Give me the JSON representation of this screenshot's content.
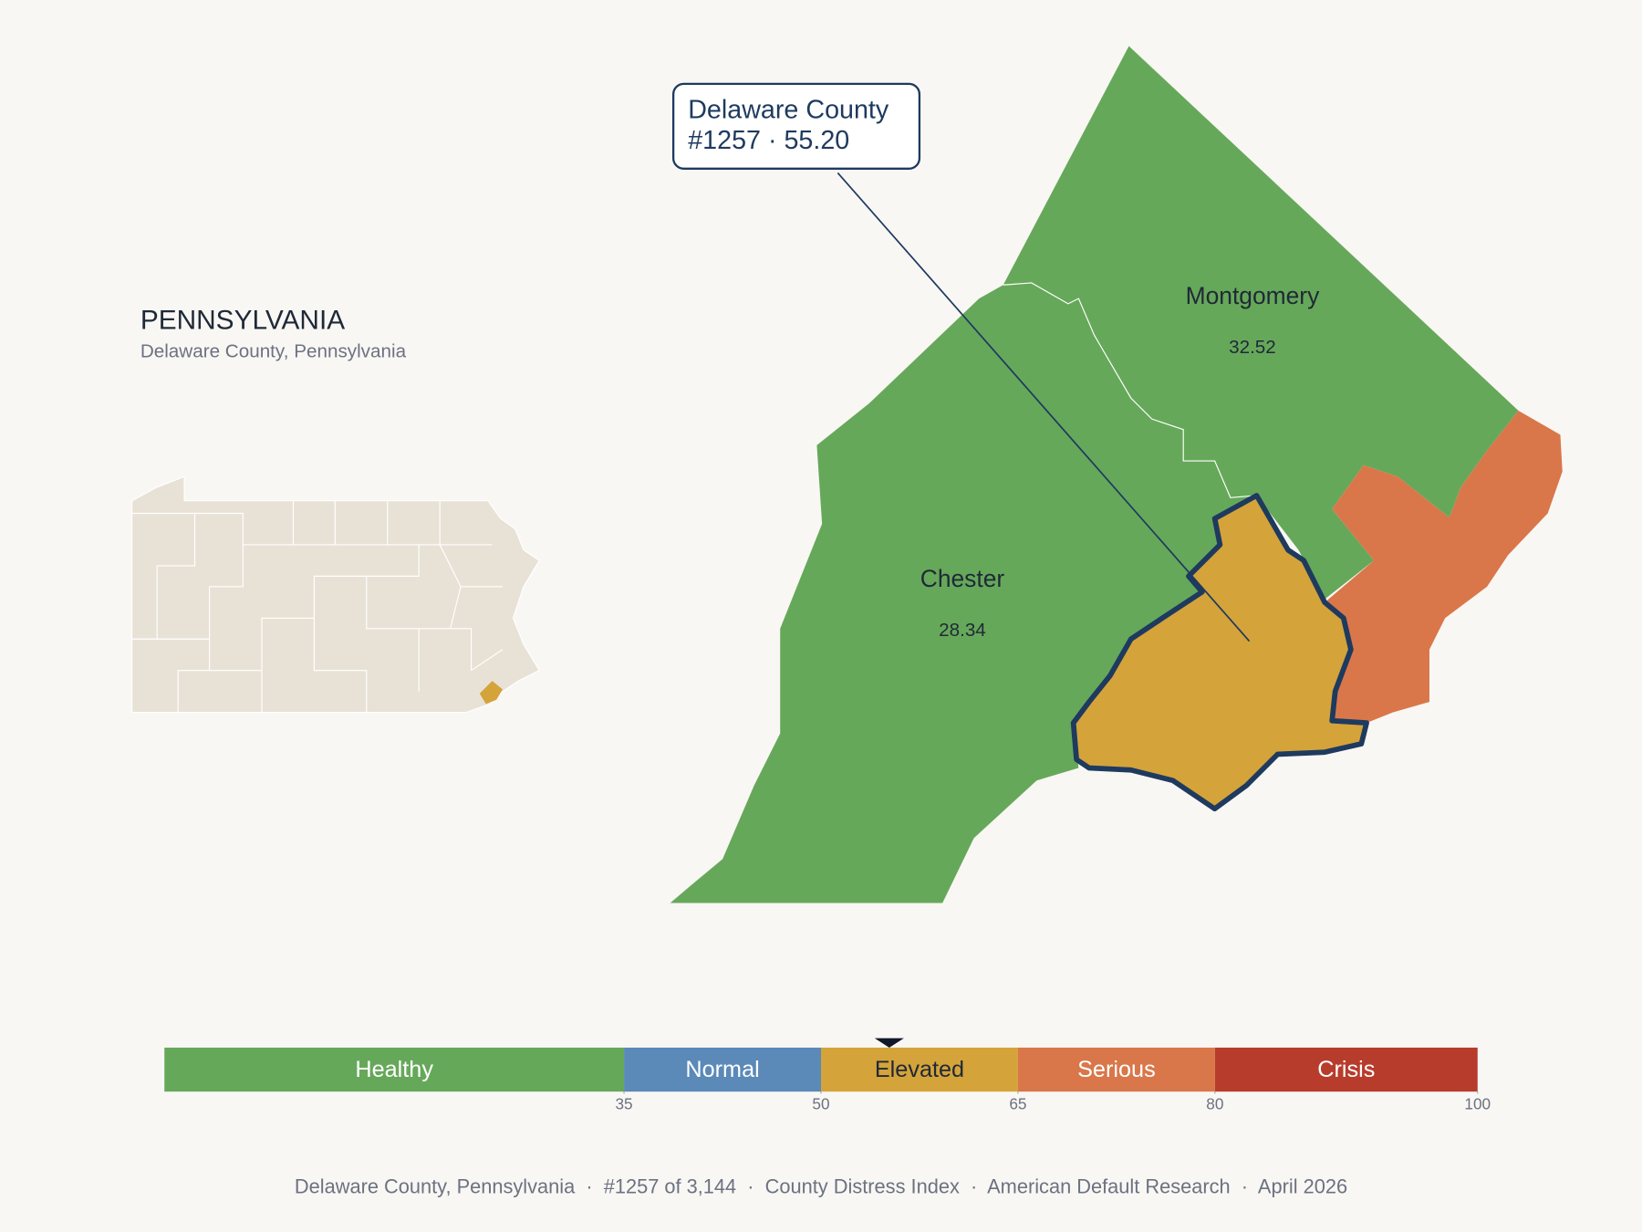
{
  "header": {
    "title": "PENNSYLVANIA",
    "subtitle": "Delaware County, Pennsylvania"
  },
  "callout": {
    "title": "Delaware County",
    "detail": "#1257 · 55.20"
  },
  "counties": [
    {
      "name": "Montgomery",
      "score": 32.52
    },
    {
      "name": "Chester",
      "score": 28.34
    }
  ],
  "chart_data": {
    "type": "scale",
    "xlim": [
      0,
      100
    ],
    "xticks": [
      35,
      50,
      65,
      80,
      100
    ],
    "bands": [
      {
        "label": "Healthy",
        "from": 0,
        "to": 35,
        "color": "#66a85a",
        "text_color": "#ffffff"
      },
      {
        "label": "Normal",
        "from": 35,
        "to": 50,
        "color": "#5b89b8",
        "text_color": "#ffffff"
      },
      {
        "label": "Elevated",
        "from": 50,
        "to": 65,
        "color": "#d4a33a",
        "text_color": "#1f2937"
      },
      {
        "label": "Serious",
        "from": 65,
        "to": 80,
        "color": "#d9774a",
        "text_color": "#ffffff"
      },
      {
        "label": "Crisis",
        "from": 80,
        "to": 100,
        "color": "#b83c2c",
        "text_color": "#ffffff"
      }
    ],
    "marker": 55.2
  },
  "footer": "Delaware County, Pennsylvania  ·  #1257 of 3,144  ·  County Distress Index  ·  American Default Research  ·  April 2026"
}
